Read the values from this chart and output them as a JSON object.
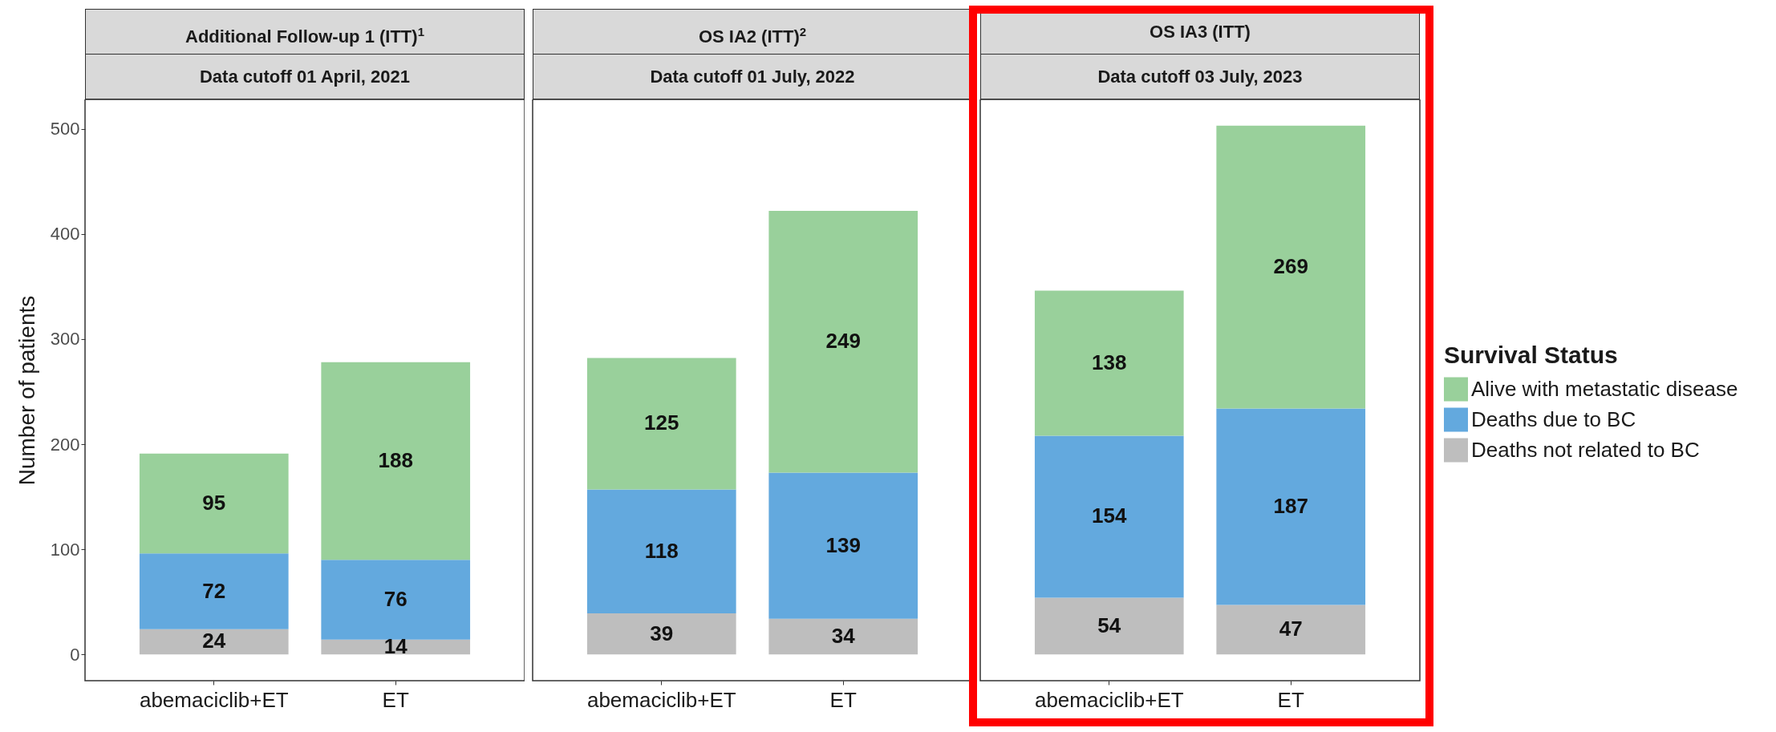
{
  "chart_data": [
    {
      "type": "bar",
      "stacked": true,
      "title": "Additional Follow-up 1 (ITT)$^{1}$",
      "subtitle": "Data cutoff 01 April, 2021",
      "ylabel": "Number of patients",
      "categories": [
        "abemaciclib+ET",
        "ET"
      ],
      "series": [
        {
          "color": "#bebebe",
          "values": [
            24,
            14
          ]
        },
        {
          "color": "#63a9de",
          "values": [
            72,
            76
          ]
        },
        {
          "color": "#99d09b",
          "values": [
            95,
            188
          ]
        }
      ],
      "ylim": [
        -25,
        528
      ],
      "yticks": [
        0,
        100,
        200,
        300,
        400,
        500
      ],
      "data_labels": true,
      "legend": false
    },
    {
      "type": "bar",
      "stacked": true,
      "title": "OS IA2 (ITT)$^{2}$",
      "subtitle": "Data cutoff 01 July, 2022",
      "categories": [
        "abemaciclib+ET",
        "ET"
      ],
      "series": [
        {
          "color": "#bebebe",
          "values": [
            39,
            34
          ]
        },
        {
          "color": "#63a9de",
          "values": [
            118,
            139
          ]
        },
        {
          "color": "#99d09b",
          "values": [
            125,
            249
          ]
        }
      ],
      "ylim": [
        -25,
        528
      ],
      "yticks": [
        0,
        100,
        200,
        300,
        400,
        500
      ],
      "tick_labels": "x",
      "data_labels": true,
      "legend": false
    },
    {
      "type": "bar",
      "stacked": true,
      "title": "OS IA3 (ITT)",
      "subtitle": "Data cutoff 03 July, 2023",
      "legend_title": "Survival Status",
      "categories": [
        "abemaciclib+ET",
        "ET"
      ],
      "series": [
        {
          "name": "Deaths not related to BC",
          "color": "#bebebe",
          "values": [
            54,
            47
          ]
        },
        {
          "name": "Deaths due to BC",
          "color": "#63a9de",
          "values": [
            154,
            187
          ]
        },
        {
          "name": "Alive with metastatic disease",
          "color": "#99d09b",
          "values": [
            138,
            269
          ]
        }
      ],
      "ylim": [
        -25,
        528
      ],
      "yticks": [
        0,
        100,
        200,
        300,
        400,
        500
      ],
      "tick_labels": "x",
      "data_labels": true,
      "legend": "right"
    }
  ]
}
